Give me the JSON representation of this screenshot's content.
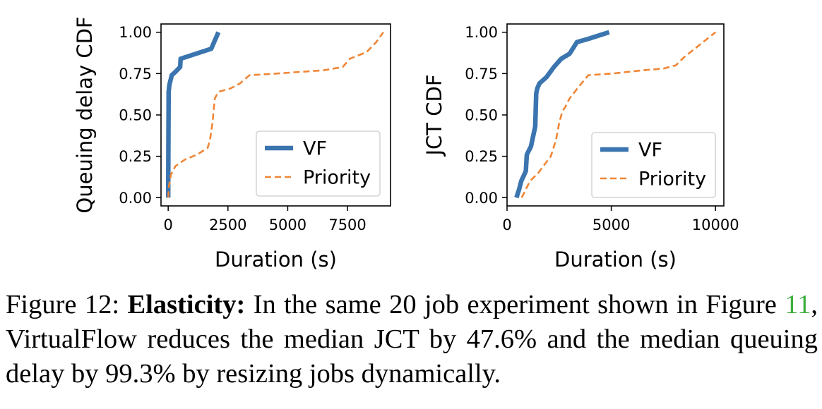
{
  "chart_data": [
    {
      "type": "line",
      "title": "",
      "xlabel": "Duration (s)",
      "ylabel": "Queuing delay CDF",
      "xlim": [
        -300,
        9300
      ],
      "ylim": [
        -0.05,
        1.05
      ],
      "xticks": [
        0,
        2500,
        5000,
        7500
      ],
      "xtick_labels": [
        "0",
        "2500",
        "5000",
        "7500"
      ],
      "yticks": [
        0,
        0.25,
        0.5,
        0.75,
        1.0
      ],
      "ytick_labels": [
        "0.00",
        "0.25",
        "0.50",
        "0.75",
        "1.00"
      ],
      "grid": false,
      "legend_position": "lower-right",
      "series": [
        {
          "name": "VF",
          "color": "#3b75af",
          "style": "solid",
          "x": [
            0,
            0,
            20,
            50,
            150,
            300,
            500,
            520,
            1800,
            2100
          ],
          "y": [
            0.0,
            0.05,
            0.64,
            0.68,
            0.74,
            0.76,
            0.79,
            0.84,
            0.9,
            1.0
          ]
        },
        {
          "name": "Priority",
          "color": "#ef8636",
          "style": "dashed",
          "x": [
            0,
            30,
            120,
            300,
            700,
            1200,
            1650,
            1750,
            1850,
            1950,
            2100,
            2600,
            3000,
            3400,
            4500,
            5500,
            6500,
            7300,
            7600,
            8300,
            8700,
            9000
          ],
          "y": [
            0.0,
            0.07,
            0.14,
            0.19,
            0.23,
            0.26,
            0.3,
            0.35,
            0.45,
            0.6,
            0.64,
            0.66,
            0.69,
            0.74,
            0.75,
            0.76,
            0.77,
            0.79,
            0.84,
            0.88,
            0.94,
            1.0
          ]
        }
      ]
    },
    {
      "type": "line",
      "title": "",
      "xlabel": "Duration (s)",
      "ylabel": "JCT CDF",
      "xlim": [
        0,
        10400
      ],
      "ylim": [
        -0.05,
        1.05
      ],
      "xticks": [
        0,
        5000,
        10000
      ],
      "xtick_labels": [
        "0",
        "5000",
        "10000"
      ],
      "yticks": [
        0,
        0.25,
        0.5,
        0.75,
        1.0
      ],
      "ytick_labels": [
        "0.00",
        "0.25",
        "0.50",
        "0.75",
        "1.00"
      ],
      "grid": false,
      "legend_position": "lower-right",
      "series": [
        {
          "name": "VF",
          "color": "#3b75af",
          "style": "solid",
          "x": [
            450,
            580,
            680,
            900,
            950,
            1150,
            1350,
            1400,
            1450,
            1550,
            1900,
            2250,
            2600,
            3000,
            3350,
            3900,
            4400,
            4900
          ],
          "y": [
            0.0,
            0.05,
            0.1,
            0.16,
            0.26,
            0.31,
            0.43,
            0.63,
            0.66,
            0.69,
            0.73,
            0.79,
            0.84,
            0.87,
            0.94,
            0.96,
            0.98,
            1.0
          ]
        },
        {
          "name": "Priority",
          "color": "#ef8636",
          "style": "dashed",
          "x": [
            700,
            1100,
            1500,
            1800,
            2100,
            2350,
            2500,
            2650,
            2800,
            3000,
            3500,
            3900,
            5000,
            6500,
            7500,
            8100,
            8500,
            9000,
            9500,
            10000
          ],
          "y": [
            0.0,
            0.1,
            0.15,
            0.2,
            0.25,
            0.35,
            0.45,
            0.52,
            0.55,
            0.6,
            0.68,
            0.74,
            0.75,
            0.77,
            0.78,
            0.8,
            0.85,
            0.9,
            0.95,
            1.0
          ]
        }
      ]
    }
  ],
  "caption": {
    "figure_label": "Figure 12:",
    "bold_title": "Elasticity:",
    "text_before_ref": "In the same 20 job experiment shown in Figure",
    "ref": "11",
    "text_after_ref": ", VirtualFlow reduces the median JCT by 47.6% and the median queuing delay by 99.3% by resizing jobs dynamically."
  }
}
